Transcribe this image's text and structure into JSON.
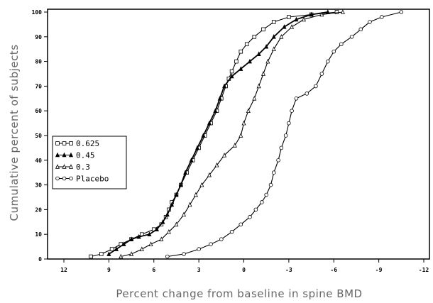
{
  "chart_data": {
    "type": "line",
    "title": "",
    "xlabel": "Percent change from baseline in spine BMD",
    "ylabel": "Cumulative percent of subjects",
    "xlim": [
      12,
      -12
    ],
    "ylim": [
      0,
      100
    ],
    "x_reversed": true,
    "x_ticks": [
      "12",
      "9",
      "6",
      "3",
      "0",
      "-3",
      "-6",
      "-9",
      "-12"
    ],
    "y_ticks": [
      "0",
      "10",
      "20",
      "30",
      "40",
      "50",
      "60",
      "70",
      "80",
      "90",
      "100"
    ],
    "grid": false,
    "legend_position": "center-left",
    "series": [
      {
        "name": "0.625",
        "marker": "square",
        "points": [
          [
            10.2,
            1
          ],
          [
            9.5,
            2
          ],
          [
            8.8,
            4
          ],
          [
            8.2,
            6
          ],
          [
            7.5,
            8
          ],
          [
            6.8,
            10
          ],
          [
            6,
            12
          ],
          [
            5.5,
            14
          ],
          [
            5.2,
            17
          ],
          [
            5,
            20
          ],
          [
            4.8,
            23
          ],
          [
            4.5,
            26
          ],
          [
            4.2,
            30
          ],
          [
            3.8,
            35
          ],
          [
            3.4,
            40
          ],
          [
            3,
            45
          ],
          [
            2.6,
            50
          ],
          [
            2.2,
            55
          ],
          [
            1.8,
            60
          ],
          [
            1.5,
            65
          ],
          [
            1.2,
            70
          ],
          [
            1,
            73
          ],
          [
            0.8,
            76
          ],
          [
            0.5,
            80
          ],
          [
            0.2,
            84
          ],
          [
            -0.2,
            87
          ],
          [
            -0.7,
            90
          ],
          [
            -1.3,
            93
          ],
          [
            -2,
            96
          ],
          [
            -3,
            98
          ],
          [
            -4.5,
            99
          ],
          [
            -6.2,
            100
          ]
        ]
      },
      {
        "name": "0.45",
        "marker": "filled-triangle",
        "points": [
          [
            9,
            2
          ],
          [
            8.5,
            4
          ],
          [
            8,
            6
          ],
          [
            7.5,
            8
          ],
          [
            7,
            9
          ],
          [
            6.3,
            10
          ],
          [
            5.8,
            12
          ],
          [
            5.4,
            15
          ],
          [
            5.1,
            18
          ],
          [
            4.8,
            22
          ],
          [
            4.5,
            26
          ],
          [
            4.2,
            30
          ],
          [
            3.9,
            35
          ],
          [
            3.5,
            40
          ],
          [
            3.1,
            45
          ],
          [
            2.7,
            50
          ],
          [
            2.3,
            55
          ],
          [
            1.9,
            60
          ],
          [
            1.6,
            65
          ],
          [
            1.3,
            70
          ],
          [
            0.8,
            74
          ],
          [
            0.2,
            77
          ],
          [
            -0.4,
            80
          ],
          [
            -1,
            83
          ],
          [
            -1.5,
            86
          ],
          [
            -2,
            90
          ],
          [
            -2.7,
            94
          ],
          [
            -3.5,
            97
          ],
          [
            -4.5,
            99
          ],
          [
            -5.6,
            100
          ]
        ]
      },
      {
        "name": "0.3",
        "marker": "triangle",
        "points": [
          [
            8.2,
            1
          ],
          [
            7.5,
            2
          ],
          [
            6.8,
            4
          ],
          [
            6.2,
            6
          ],
          [
            5.5,
            8
          ],
          [
            5,
            11
          ],
          [
            4.5,
            14
          ],
          [
            4,
            18
          ],
          [
            3.6,
            22
          ],
          [
            3.2,
            26
          ],
          [
            2.8,
            30
          ],
          [
            2.3,
            34
          ],
          [
            1.8,
            38
          ],
          [
            1.3,
            42
          ],
          [
            0.6,
            46
          ],
          [
            0.2,
            50
          ],
          [
            0,
            55
          ],
          [
            -0.3,
            60
          ],
          [
            -0.7,
            65
          ],
          [
            -1,
            70
          ],
          [
            -1.3,
            75
          ],
          [
            -1.6,
            80
          ],
          [
            -2,
            85
          ],
          [
            -2.5,
            90
          ],
          [
            -3.2,
            94
          ],
          [
            -4,
            97
          ],
          [
            -5.2,
            99
          ],
          [
            -6.6,
            100
          ]
        ]
      },
      {
        "name": "Placebo",
        "marker": "circle",
        "points": [
          [
            5.1,
            1
          ],
          [
            4,
            2
          ],
          [
            3,
            4
          ],
          [
            2.2,
            6
          ],
          [
            1.5,
            8
          ],
          [
            0.8,
            11
          ],
          [
            0.2,
            14
          ],
          [
            -0.4,
            17
          ],
          [
            -0.8,
            20
          ],
          [
            -1.2,
            23
          ],
          [
            -1.5,
            26
          ],
          [
            -1.8,
            30
          ],
          [
            -2,
            35
          ],
          [
            -2.3,
            40
          ],
          [
            -2.5,
            45
          ],
          [
            -2.8,
            50
          ],
          [
            -3,
            55
          ],
          [
            -3.2,
            60
          ],
          [
            -3.5,
            65
          ],
          [
            -4.2,
            67
          ],
          [
            -4.8,
            70
          ],
          [
            -5.2,
            75
          ],
          [
            -5.6,
            80
          ],
          [
            -6,
            84
          ],
          [
            -6.5,
            87
          ],
          [
            -7.2,
            90
          ],
          [
            -7.8,
            93
          ],
          [
            -8.4,
            96
          ],
          [
            -9.2,
            98
          ],
          [
            -10.5,
            100
          ]
        ]
      }
    ]
  }
}
